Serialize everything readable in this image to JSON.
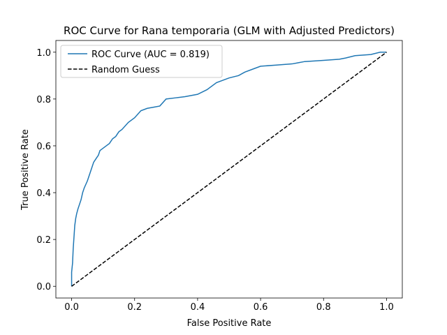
{
  "chart_data": {
    "type": "line",
    "title": "ROC Curve for Rana temporaria (GLM with Adjusted Predictors)",
    "xlabel": "False Positive Rate",
    "ylabel": "True Positive Rate",
    "xlim": [
      -0.05,
      1.05
    ],
    "ylim": [
      -0.05,
      1.05
    ],
    "xticks": [
      "0.0",
      "0.2",
      "0.4",
      "0.6",
      "0.8",
      "1.0"
    ],
    "yticks": [
      "0.0",
      "0.2",
      "0.4",
      "0.6",
      "0.8",
      "1.0"
    ],
    "grid": false,
    "legend_position": "upper-left",
    "series": [
      {
        "name": "ROC Curve (AUC = 0.819)",
        "color": "#1f77b4",
        "style": "solid",
        "x": [
          0.0,
          0.0,
          0.003,
          0.005,
          0.008,
          0.01,
          0.013,
          0.016,
          0.02,
          0.025,
          0.03,
          0.035,
          0.04,
          0.05,
          0.06,
          0.065,
          0.07,
          0.075,
          0.08,
          0.085,
          0.09,
          0.1,
          0.11,
          0.12,
          0.13,
          0.14,
          0.15,
          0.16,
          0.18,
          0.2,
          0.22,
          0.24,
          0.26,
          0.28,
          0.3,
          0.33,
          0.36,
          0.4,
          0.43,
          0.46,
          0.5,
          0.53,
          0.55,
          0.58,
          0.6,
          0.65,
          0.7,
          0.72,
          0.74,
          0.8,
          0.85,
          0.87,
          0.9,
          0.95,
          0.98,
          1.0
        ],
        "y": [
          0.0,
          0.06,
          0.1,
          0.16,
          0.22,
          0.26,
          0.29,
          0.31,
          0.33,
          0.35,
          0.37,
          0.4,
          0.42,
          0.45,
          0.49,
          0.51,
          0.53,
          0.54,
          0.55,
          0.56,
          0.58,
          0.59,
          0.6,
          0.61,
          0.63,
          0.64,
          0.66,
          0.67,
          0.7,
          0.72,
          0.75,
          0.76,
          0.765,
          0.77,
          0.8,
          0.805,
          0.81,
          0.82,
          0.84,
          0.87,
          0.89,
          0.9,
          0.915,
          0.93,
          0.94,
          0.945,
          0.95,
          0.955,
          0.96,
          0.965,
          0.97,
          0.975,
          0.985,
          0.99,
          1.0,
          1.0
        ]
      },
      {
        "name": "Random Guess",
        "color": "#000000",
        "style": "dashed",
        "x": [
          0.0,
          1.0
        ],
        "y": [
          0.0,
          1.0
        ]
      }
    ]
  }
}
